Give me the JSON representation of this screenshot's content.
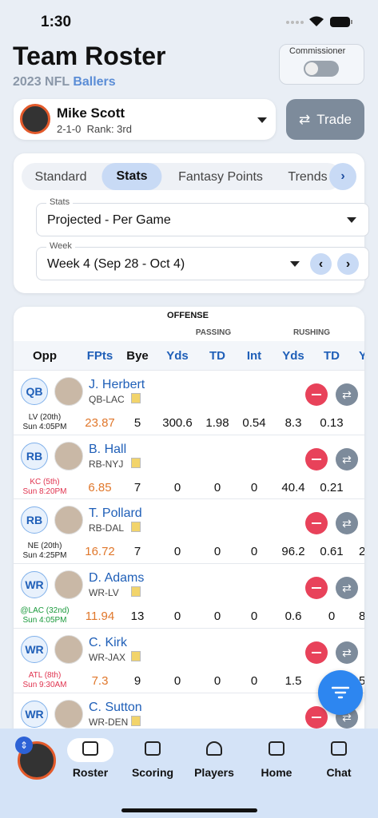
{
  "status": {
    "time": "1:30"
  },
  "header": {
    "title": "Team Roster",
    "season": "2023 NFL",
    "league": "Ballers",
    "commissioner": "Commissioner"
  },
  "team": {
    "name": "Mike Scott",
    "record": "2-1-0",
    "rank": "Rank: 3rd",
    "trade": "Trade"
  },
  "tabs": [
    "Standard",
    "Stats",
    "Fantasy Points",
    "Trends"
  ],
  "filters": {
    "stats_label": "Stats",
    "stats_value": "Projected - Per Game",
    "week_label": "Week",
    "week_value": "Week 4 (Sep 28 - Oct 4)"
  },
  "table": {
    "group": "OFFENSE",
    "passing": "PASSING",
    "rushing": "RUSHING",
    "columns": [
      "Opp",
      "FPts",
      "Bye",
      "Yds",
      "TD",
      "Int",
      "Yds",
      "TD",
      "Y"
    ],
    "rows": [
      {
        "pos": "QB",
        "name": "J. Herbert",
        "team": "QB-LAC",
        "opp": "LV (20th)",
        "time": "Sun 4:05PM",
        "opp_color": "#222222",
        "time_color": "#222222",
        "stats": [
          23.87,
          5,
          300.6,
          1.98,
          0.54,
          8.3,
          0.13,
          null
        ]
      },
      {
        "pos": "RB",
        "name": "B. Hall",
        "team": "RB-NYJ",
        "opp": "KC (5th)",
        "time": "Sun 8:20PM",
        "opp_color": "#e0334f",
        "time_color": "#e0334f",
        "stats": [
          6.85,
          7,
          0,
          0,
          0,
          40.4,
          0.21,
          null
        ]
      },
      {
        "pos": "RB",
        "name": "T. Pollard",
        "team": "RB-DAL",
        "opp": "NE (20th)",
        "time": "Sun 4:25PM",
        "opp_color": "#222222",
        "time_color": "#222222",
        "stats": [
          16.72,
          7,
          0,
          0,
          0,
          96.2,
          0.61,
          2
        ]
      },
      {
        "pos": "WR",
        "name": "D. Adams",
        "team": "WR-LV",
        "opp": "@LAC (32nd)",
        "time": "Sun 4:05PM",
        "opp_color": "#1a9a3c",
        "time_color": "#1a9a3c",
        "stats": [
          11.94,
          13,
          0,
          0,
          0,
          0.6,
          0,
          8
        ]
      },
      {
        "pos": "WR",
        "name": "C. Kirk",
        "team": "WR-JAX",
        "opp": "ATL (8th)",
        "time": "Sun 9:30AM",
        "opp_color": "#e0334f",
        "time_color": "#e0334f",
        "stats": [
          7.3,
          9,
          0,
          0,
          0,
          1.5,
          null,
          5
        ]
      },
      {
        "pos": "WR",
        "name": "C. Sutton",
        "team": "WR-DEN",
        "opp": null,
        "time": null,
        "opp_color": "#222222",
        "time_color": "#222222",
        "stats": []
      }
    ]
  },
  "nav": [
    "Roster",
    "Scoring",
    "Players",
    "Home",
    "Chat"
  ]
}
